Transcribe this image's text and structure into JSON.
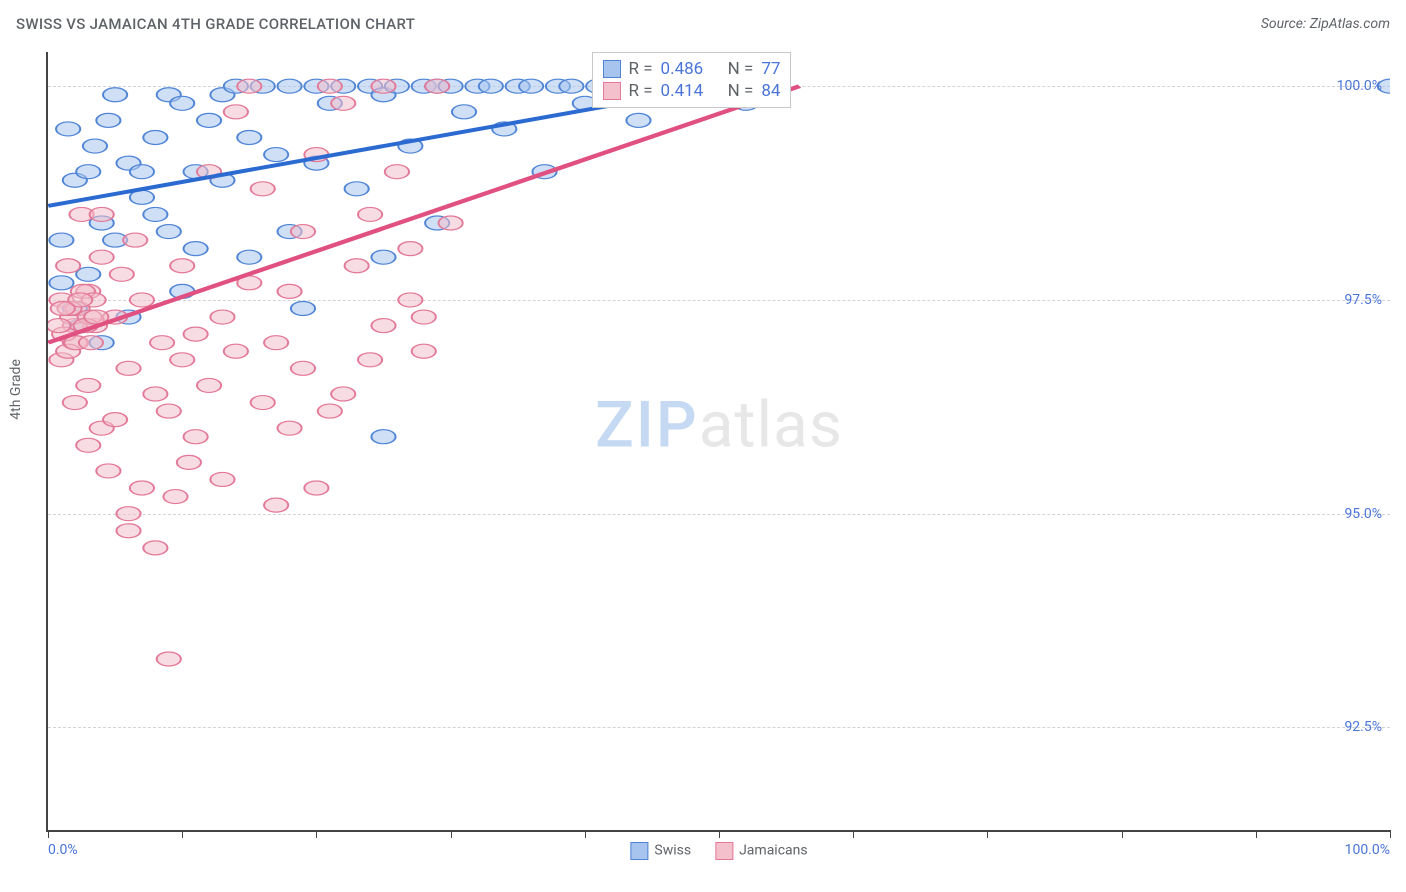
{
  "header": {
    "title": "SWISS VS JAMAICAN 4TH GRADE CORRELATION CHART",
    "source": "Source: ZipAtlas.com"
  },
  "chart": {
    "type": "scatter",
    "y_axis_title": "4th Grade",
    "x_range": [
      0,
      100
    ],
    "y_range": [
      91.3,
      100.4
    ],
    "x_ticks": [
      0,
      10,
      20,
      30,
      40,
      50,
      60,
      70,
      80,
      90,
      100
    ],
    "x_tick_labels": {
      "left": "0.0%",
      "right": "100.0%"
    },
    "y_ticks": [
      92.5,
      95.0,
      97.5,
      100.0
    ],
    "y_tick_labels": [
      "92.5%",
      "95.0%",
      "97.5%",
      "100.0%"
    ],
    "grid_color": "#d0d3d8",
    "axis_color": "#444444",
    "background": "#ffffff",
    "label_color": "#4a74d8",
    "title_color": "#5f6368",
    "point_radius": 9,
    "point_opacity": 0.55,
    "line_width": 2.5,
    "series": [
      {
        "name": "Swiss",
        "color_fill": "#a7c4ee",
        "color_stroke": "#5085d6",
        "line_color": "#2b6ad0",
        "R": "0.486",
        "N": "77",
        "trend": {
          "x1": 0,
          "y1": 98.6,
          "x2": 50,
          "y2": 100.0
        },
        "points": [
          [
            1,
            98.2
          ],
          [
            1,
            97.7
          ],
          [
            1.5,
            99.5
          ],
          [
            2,
            97.4
          ],
          [
            2,
            98.9
          ],
          [
            2.5,
            97.2
          ],
          [
            3,
            99.0
          ],
          [
            3,
            97.8
          ],
          [
            3.5,
            99.3
          ],
          [
            4,
            97.0
          ],
          [
            4,
            98.4
          ],
          [
            4.5,
            99.6
          ],
          [
            5,
            98.2
          ],
          [
            5,
            99.9
          ],
          [
            6,
            97.3
          ],
          [
            6,
            99.1
          ],
          [
            7,
            99.0
          ],
          [
            7,
            98.7
          ],
          [
            8,
            98.5
          ],
          [
            8,
            99.4
          ],
          [
            9,
            99.9
          ],
          [
            9,
            98.3
          ],
          [
            10,
            99.8
          ],
          [
            10,
            97.6
          ],
          [
            11,
            99.0
          ],
          [
            11,
            98.1
          ],
          [
            12,
            99.6
          ],
          [
            13,
            99.9
          ],
          [
            13,
            98.9
          ],
          [
            14,
            100.0
          ],
          [
            15,
            98.0
          ],
          [
            15,
            99.4
          ],
          [
            16,
            100.0
          ],
          [
            17,
            99.2
          ],
          [
            18,
            100.0
          ],
          [
            18,
            98.3
          ],
          [
            19,
            97.4
          ],
          [
            20,
            100.0
          ],
          [
            20,
            99.1
          ],
          [
            21,
            99.8
          ],
          [
            22,
            100.0
          ],
          [
            23,
            98.8
          ],
          [
            24,
            100.0
          ],
          [
            25,
            99.9
          ],
          [
            25,
            98.0
          ],
          [
            25,
            95.9
          ],
          [
            26,
            100.0
          ],
          [
            27,
            99.3
          ],
          [
            28,
            100.0
          ],
          [
            29,
            100.0
          ],
          [
            29,
            98.4
          ],
          [
            30,
            100.0
          ],
          [
            31,
            99.7
          ],
          [
            32,
            100.0
          ],
          [
            33,
            100.0
          ],
          [
            34,
            99.5
          ],
          [
            35,
            100.0
          ],
          [
            36,
            100.0
          ],
          [
            37,
            99.0
          ],
          [
            38,
            100.0
          ],
          [
            39,
            100.0
          ],
          [
            40,
            99.8
          ],
          [
            41,
            100.0
          ],
          [
            42,
            100.0
          ],
          [
            43,
            100.0
          ],
          [
            44,
            99.6
          ],
          [
            45,
            100.0
          ],
          [
            46,
            100.0
          ],
          [
            47,
            99.9
          ],
          [
            48,
            100.0
          ],
          [
            49,
            100.0
          ],
          [
            50,
            100.0
          ],
          [
            51,
            100.0
          ],
          [
            52,
            99.8
          ],
          [
            53,
            100.0
          ],
          [
            54,
            100.0
          ],
          [
            100,
            100.0
          ]
        ]
      },
      {
        "name": "Jamaicans",
        "color_fill": "#f3c0cc",
        "color_stroke": "#e37998",
        "line_color": "#e05080",
        "R": "0.414",
        "N": "84",
        "trend": {
          "x1": 0,
          "y1": 97.0,
          "x2": 56,
          "y2": 100.0
        },
        "points": [
          [
            1,
            97.5
          ],
          [
            1,
            96.8
          ],
          [
            1.5,
            97.9
          ],
          [
            2,
            96.3
          ],
          [
            2,
            97.0
          ],
          [
            2.5,
            98.5
          ],
          [
            3,
            95.8
          ],
          [
            3,
            96.5
          ],
          [
            3.5,
            97.2
          ],
          [
            4,
            96.0
          ],
          [
            4,
            98.0
          ],
          [
            4.5,
            95.5
          ],
          [
            5,
            97.3
          ],
          [
            5,
            96.1
          ],
          [
            5.5,
            97.8
          ],
          [
            6,
            95.0
          ],
          [
            6,
            96.7
          ],
          [
            6.5,
            98.2
          ],
          [
            7,
            95.3
          ],
          [
            7,
            97.5
          ],
          [
            8,
            96.4
          ],
          [
            8,
            94.6
          ],
          [
            8.5,
            97.0
          ],
          [
            9,
            96.2
          ],
          [
            9,
            93.3
          ],
          [
            9.5,
            95.2
          ],
          [
            10,
            96.8
          ],
          [
            10,
            97.9
          ],
          [
            10.5,
            95.6
          ],
          [
            11,
            97.1
          ],
          [
            11,
            95.9
          ],
          [
            12,
            96.5
          ],
          [
            12,
            99.0
          ],
          [
            13,
            97.3
          ],
          [
            13,
            95.4
          ],
          [
            14,
            96.9
          ],
          [
            14,
            99.7
          ],
          [
            15,
            97.7
          ],
          [
            15,
            100.0
          ],
          [
            16,
            96.3
          ],
          [
            16,
            98.8
          ],
          [
            17,
            97.0
          ],
          [
            17,
            95.1
          ],
          [
            18,
            97.6
          ],
          [
            18,
            96.0
          ],
          [
            19,
            98.3
          ],
          [
            19,
            96.7
          ],
          [
            20,
            95.3
          ],
          [
            20,
            99.2
          ],
          [
            21,
            96.2
          ],
          [
            21,
            100.0
          ],
          [
            22,
            96.4
          ],
          [
            22,
            99.8
          ],
          [
            23,
            97.9
          ],
          [
            24,
            98.5
          ],
          [
            24,
            96.8
          ],
          [
            25,
            97.2
          ],
          [
            25,
            100.0
          ],
          [
            26,
            99.0
          ],
          [
            27,
            97.5
          ],
          [
            27,
            98.1
          ],
          [
            28,
            96.9
          ],
          [
            28,
            97.3
          ],
          [
            29,
            100.0
          ],
          [
            30,
            98.4
          ],
          [
            6,
            94.8
          ],
          [
            3,
            97.6
          ],
          [
            4,
            98.5
          ],
          [
            2,
            97.2
          ],
          [
            1.5,
            96.9
          ],
          [
            1.8,
            97.3
          ],
          [
            2.2,
            97.4
          ],
          [
            2.6,
            97.6
          ],
          [
            3.1,
            97.3
          ],
          [
            3.4,
            97.5
          ],
          [
            1.2,
            97.1
          ],
          [
            1.6,
            97.4
          ],
          [
            2.1,
            97.0
          ],
          [
            2.4,
            97.5
          ],
          [
            2.8,
            97.2
          ],
          [
            3.2,
            97.0
          ],
          [
            3.6,
            97.3
          ],
          [
            0.8,
            97.2
          ],
          [
            1.1,
            97.4
          ]
        ]
      }
    ],
    "stats_box": {
      "left_pct": 40.5,
      "top_pct": 0
    },
    "legend_bottom": [
      {
        "label": "Swiss",
        "fill": "#a7c4ee",
        "stroke": "#5085d6"
      },
      {
        "label": "Jamaicans",
        "fill": "#f3c0cc",
        "stroke": "#e37998"
      }
    ],
    "watermark": {
      "part1": "ZIP",
      "part2": "atlas"
    }
  }
}
